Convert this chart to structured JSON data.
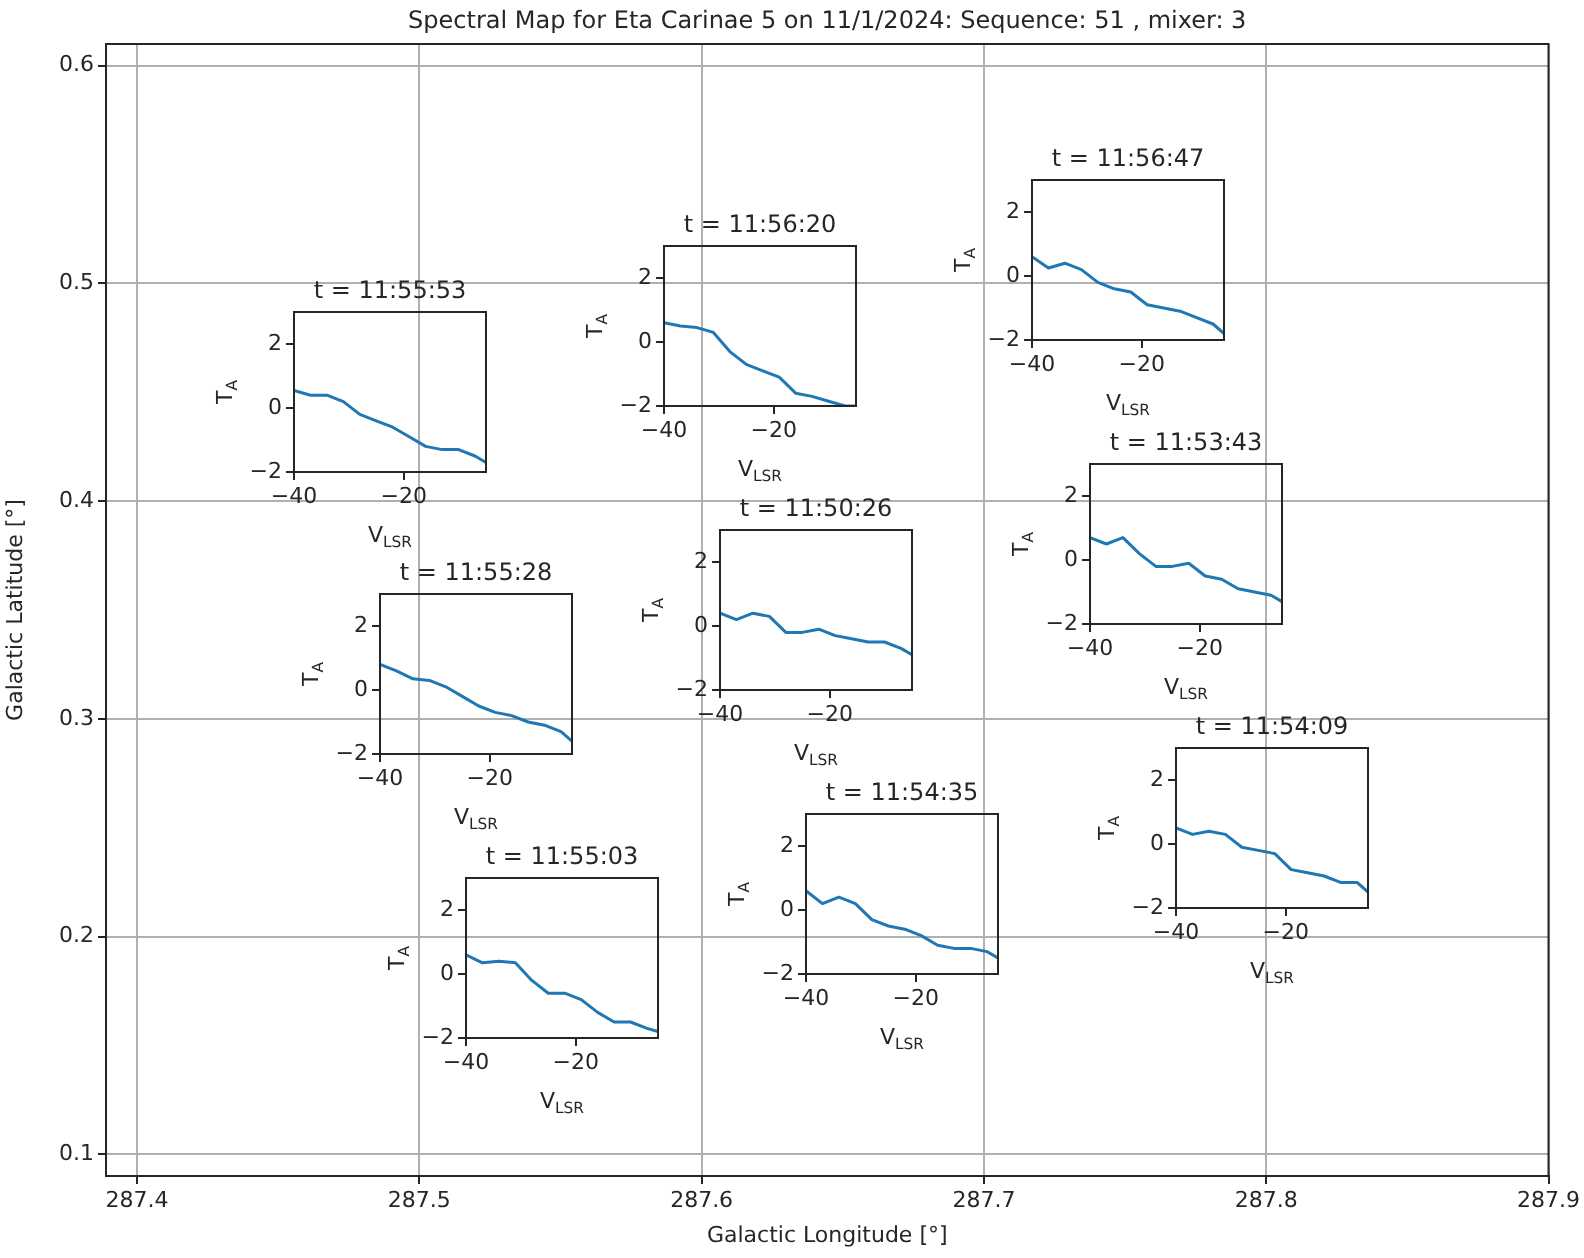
{
  "chart_data": [
    {
      "type": "scatter",
      "title": "Spectral Map for Eta Carinae 5 on 11/1/2024: Sequence: 51 , mixer: 3",
      "xlabel": "Galactic Longitude [°]",
      "ylabel": "Galactic Latitude [°]",
      "xlim": [
        287.389,
        287.9
      ],
      "xticks": [
        287.4,
        287.5,
        287.6,
        287.7,
        287.8,
        287.9
      ],
      "ylim": [
        0.09,
        0.61
      ],
      "yticks": [
        0.1,
        0.2,
        0.3,
        0.4,
        0.5,
        0.6
      ],
      "grid": true
    },
    {
      "type": "line",
      "title": "t = 11:56:47",
      "xlabel": "V$_{LSR}$",
      "ylabel": "T$_{A}$",
      "x": [
        -40,
        -37,
        -34,
        -31,
        -28,
        -25,
        -22,
        -19,
        -16,
        -13,
        -10,
        -7,
        -5
      ],
      "values": [
        0.6,
        0.25,
        0.4,
        0.2,
        -0.2,
        -0.4,
        -0.5,
        -0.9,
        -1.0,
        -1.1,
        -1.3,
        -1.5,
        -1.8
      ],
      "color": "#1f77b4",
      "xlim": [
        -40,
        -5
      ],
      "xticks": [
        -40,
        -20
      ],
      "ylim": [
        -2,
        3
      ],
      "yticks": [
        -2,
        0,
        2
      ]
    },
    {
      "type": "line",
      "title": "t = 11:56:20",
      "xlabel": "V$_{LSR}$",
      "ylabel": "T$_{A}$",
      "x": [
        -40,
        -37,
        -34,
        -31,
        -28,
        -25,
        -22,
        -19,
        -16,
        -13,
        -10,
        -7,
        -5
      ],
      "values": [
        0.6,
        0.5,
        0.45,
        0.3,
        -0.3,
        -0.7,
        -0.9,
        -1.1,
        -1.6,
        -1.7,
        -1.85,
        -2.0,
        -2.0
      ],
      "color": "#1f77b4",
      "xlim": [
        -40,
        -5
      ],
      "xticks": [
        -40,
        -20
      ],
      "ylim": [
        -2,
        3
      ],
      "yticks": [
        -2,
        0,
        2
      ]
    },
    {
      "type": "line",
      "title": "t = 11:55:53",
      "xlabel": "V$_{LSR}$",
      "ylabel": "T$_{A}$",
      "x": [
        -40,
        -37,
        -34,
        -31,
        -28,
        -25,
        -22,
        -19,
        -16,
        -13,
        -10,
        -7,
        -5
      ],
      "values": [
        0.55,
        0.4,
        0.4,
        0.2,
        -0.2,
        -0.4,
        -0.6,
        -0.9,
        -1.2,
        -1.3,
        -1.3,
        -1.5,
        -1.7
      ],
      "color": "#1f77b4",
      "xlim": [
        -40,
        -5
      ],
      "xticks": [
        -40,
        -20
      ],
      "ylim": [
        -2,
        3
      ],
      "yticks": [
        -2,
        0,
        2
      ]
    },
    {
      "type": "line",
      "title": "t = 11:53:43",
      "xlabel": "V$_{LSR}$",
      "ylabel": "T$_{A}$",
      "x": [
        -40,
        -37,
        -34,
        -31,
        -28,
        -25,
        -22,
        -19,
        -16,
        -13,
        -10,
        -7,
        -5
      ],
      "values": [
        0.7,
        0.5,
        0.7,
        0.2,
        -0.2,
        -0.2,
        -0.1,
        -0.5,
        -0.6,
        -0.9,
        -1.0,
        -1.1,
        -1.3
      ],
      "color": "#1f77b4",
      "xlim": [
        -40,
        -5
      ],
      "xticks": [
        -40,
        -20
      ],
      "ylim": [
        -2,
        3
      ],
      "yticks": [
        -2,
        0,
        2
      ]
    },
    {
      "type": "line",
      "title": "t = 11:50:26",
      "xlabel": "V$_{LSR}$",
      "ylabel": "T$_{A}$",
      "x": [
        -40,
        -37,
        -34,
        -31,
        -28,
        -25,
        -22,
        -19,
        -16,
        -13,
        -10,
        -7,
        -5
      ],
      "values": [
        0.4,
        0.2,
        0.4,
        0.3,
        -0.2,
        -0.2,
        -0.1,
        -0.3,
        -0.4,
        -0.5,
        -0.5,
        -0.7,
        -0.9
      ],
      "color": "#1f77b4",
      "xlim": [
        -40,
        -5
      ],
      "xticks": [
        -40,
        -20
      ],
      "ylim": [
        -2,
        3
      ],
      "yticks": [
        -2,
        0,
        2
      ]
    },
    {
      "type": "line",
      "title": "t = 11:55:28",
      "xlabel": "V$_{LSR}$",
      "ylabel": "T$_{A}$",
      "x": [
        -40,
        -37,
        -34,
        -31,
        -28,
        -25,
        -22,
        -19,
        -16,
        -13,
        -10,
        -7,
        -5
      ],
      "values": [
        0.8,
        0.6,
        0.35,
        0.3,
        0.1,
        -0.2,
        -0.5,
        -0.7,
        -0.8,
        -1.0,
        -1.1,
        -1.3,
        -1.6
      ],
      "color": "#1f77b4",
      "xlim": [
        -40,
        -5
      ],
      "xticks": [
        -40,
        -20
      ],
      "ylim": [
        -2,
        3
      ],
      "yticks": [
        -2,
        0,
        2
      ]
    },
    {
      "type": "line",
      "title": "t = 11:54:09",
      "xlabel": "V$_{LSR}$",
      "ylabel": "T$_{A}$",
      "x": [
        -40,
        -37,
        -34,
        -31,
        -28,
        -25,
        -22,
        -19,
        -16,
        -13,
        -10,
        -7,
        -5
      ],
      "values": [
        0.5,
        0.3,
        0.4,
        0.3,
        -0.1,
        -0.2,
        -0.3,
        -0.8,
        -0.9,
        -1.0,
        -1.2,
        -1.2,
        -1.5
      ],
      "color": "#1f77b4",
      "xlim": [
        -40,
        -5
      ],
      "xticks": [
        -40,
        -20
      ],
      "ylim": [
        -2,
        3
      ],
      "yticks": [
        -2,
        0,
        2
      ]
    },
    {
      "type": "line",
      "title": "t = 11:54:35",
      "xlabel": "V$_{LSR}$",
      "ylabel": "T$_{A}$",
      "x": [
        -40,
        -37,
        -34,
        -31,
        -28,
        -25,
        -22,
        -19,
        -16,
        -13,
        -10,
        -7,
        -5
      ],
      "values": [
        0.6,
        0.2,
        0.4,
        0.2,
        -0.3,
        -0.5,
        -0.6,
        -0.8,
        -1.1,
        -1.2,
        -1.2,
        -1.3,
        -1.5
      ],
      "color": "#1f77b4",
      "xlim": [
        -40,
        -5
      ],
      "xticks": [
        -40,
        -20
      ],
      "ylim": [
        -2,
        3
      ],
      "yticks": [
        -2,
        0,
        2
      ]
    },
    {
      "type": "line",
      "title": "t = 11:55:03",
      "xlabel": "V$_{LSR}$",
      "ylabel": "T$_{A}$",
      "x": [
        -40,
        -37,
        -34,
        -31,
        -28,
        -25,
        -22,
        -19,
        -16,
        -13,
        -10,
        -7,
        -5
      ],
      "values": [
        0.6,
        0.35,
        0.4,
        0.35,
        -0.2,
        -0.6,
        -0.6,
        -0.8,
        -1.2,
        -1.5,
        -1.5,
        -1.7,
        -1.8
      ],
      "color": "#1f77b4",
      "xlim": [
        -40,
        -5
      ],
      "xticks": [
        -40,
        -20
      ],
      "ylim": [
        -2,
        3
      ],
      "yticks": [
        -2,
        0,
        2
      ]
    }
  ]
}
